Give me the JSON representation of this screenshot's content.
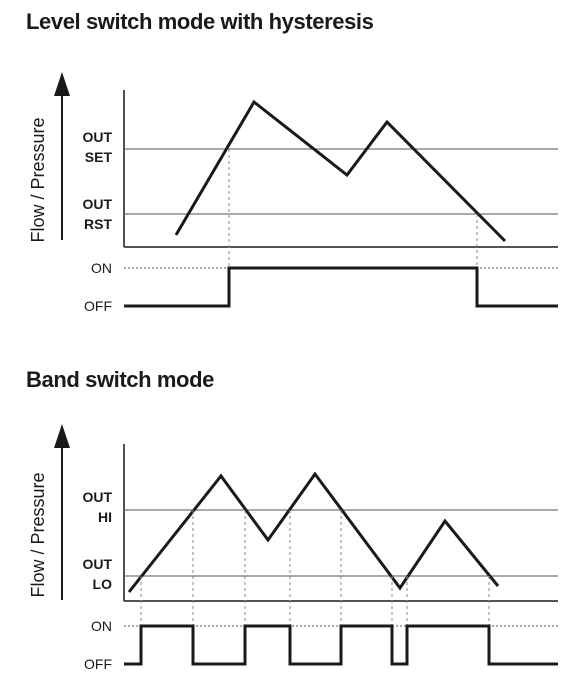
{
  "diagram1": {
    "title": "Level switch mode with hysteresis",
    "y_axis_label": "Flow / Pressure",
    "thresholds": [
      {
        "line1": "OUT",
        "line2": "SET"
      },
      {
        "line1": "OUT",
        "line2": "RST"
      }
    ],
    "output_states": {
      "on": "ON",
      "off": "OFF"
    }
  },
  "diagram2": {
    "title": "Band switch mode",
    "y_axis_label": "Flow / Pressure",
    "thresholds": [
      {
        "line1": "OUT",
        "line2": "HI"
      },
      {
        "line1": "OUT",
        "line2": "LO"
      }
    ],
    "output_states": {
      "on": "ON",
      "off": "OFF"
    }
  },
  "colors": {
    "ink": "#1a1a1a",
    "guide": "#888888"
  }
}
